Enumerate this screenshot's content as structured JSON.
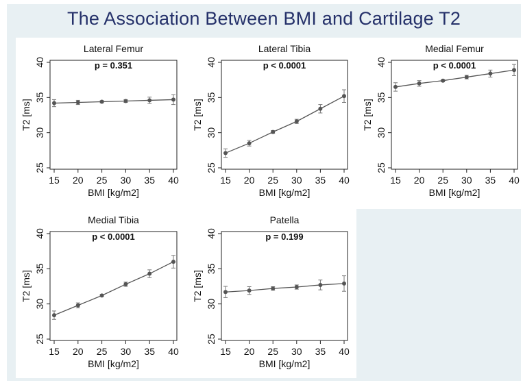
{
  "title": "The Association Between BMI and Cartilage T2",
  "colors": {
    "background": "#e8f0f3",
    "panel": "#ffffff",
    "title": "#25316a",
    "series": "#555555"
  },
  "chart_data": [
    {
      "type": "line",
      "title": "Lateral Femur",
      "annotation": "p = 0.351",
      "xlabel": "BMI [kg/m2]",
      "ylabel": "T2 [ms]",
      "x": [
        15,
        20,
        25,
        30,
        35,
        40
      ],
      "xticks": [
        "15",
        "20",
        "25",
        "30",
        "35",
        "40"
      ],
      "yticks": [
        "25",
        "30",
        "35",
        "40"
      ],
      "xlim": [
        15,
        40
      ],
      "ylim": [
        25,
        40
      ],
      "values": [
        34.2,
        34.3,
        34.4,
        34.5,
        34.6,
        34.7
      ],
      "error": [
        0.5,
        0.3,
        0.15,
        0.2,
        0.45,
        0.7
      ],
      "grid": false
    },
    {
      "type": "line",
      "title": "Lateral Tibia",
      "annotation": "p < 0.0001",
      "xlabel": "BMI [kg/m2]",
      "ylabel": "T2 [ms]",
      "x": [
        15,
        20,
        25,
        30,
        35,
        40
      ],
      "xticks": [
        "15",
        "20",
        "25",
        "30",
        "35",
        "40"
      ],
      "yticks": [
        "25",
        "30",
        "35",
        "40"
      ],
      "xlim": [
        15,
        40
      ],
      "ylim": [
        25,
        40
      ],
      "values": [
        27.1,
        28.5,
        30.1,
        31.6,
        33.4,
        35.2
      ],
      "error": [
        0.6,
        0.4,
        0.2,
        0.3,
        0.6,
        0.9
      ],
      "grid": false
    },
    {
      "type": "line",
      "title": "Medial Femur",
      "annotation": "p < 0.0001",
      "xlabel": "BMI [kg/m2]",
      "ylabel": "T2 [ms]",
      "x": [
        15,
        20,
        25,
        30,
        35,
        40
      ],
      "xticks": [
        "15",
        "20",
        "25",
        "30",
        "35",
        "40"
      ],
      "yticks": [
        "25",
        "30",
        "35",
        "40"
      ],
      "xlim": [
        15,
        40
      ],
      "ylim": [
        25,
        40
      ],
      "values": [
        36.5,
        37.0,
        37.4,
        37.9,
        38.4,
        38.9
      ],
      "error": [
        0.6,
        0.4,
        0.15,
        0.25,
        0.5,
        0.8
      ],
      "grid": false
    },
    {
      "type": "line",
      "title": "Medial Tibia",
      "annotation": "p < 0.0001",
      "xlabel": "BMI [kg/m2]",
      "ylabel": "T2 [ms]",
      "x": [
        15,
        20,
        25,
        30,
        35,
        40
      ],
      "xticks": [
        "15",
        "20",
        "25",
        "30",
        "35",
        "40"
      ],
      "yticks": [
        "25",
        "30",
        "35",
        "40"
      ],
      "xlim": [
        15,
        40
      ],
      "ylim": [
        25,
        40
      ],
      "values": [
        28.4,
        29.8,
        31.2,
        32.8,
        34.3,
        36.0
      ],
      "error": [
        0.6,
        0.35,
        0.15,
        0.3,
        0.55,
        0.9
      ],
      "grid": false
    },
    {
      "type": "line",
      "title": "Patella",
      "annotation": "p = 0.199",
      "xlabel": "BMI [kg/m2]",
      "ylabel": "T2 [ms]",
      "x": [
        15,
        20,
        25,
        30,
        35,
        40
      ],
      "xticks": [
        "15",
        "20",
        "25",
        "30",
        "35",
        "40"
      ],
      "yticks": [
        "25",
        "30",
        "35",
        "40"
      ],
      "xlim": [
        15,
        40
      ],
      "ylim": [
        25,
        40
      ],
      "values": [
        31.7,
        31.9,
        32.2,
        32.4,
        32.7,
        32.9
      ],
      "error": [
        0.8,
        0.55,
        0.25,
        0.3,
        0.7,
        1.1
      ],
      "grid": false
    }
  ]
}
